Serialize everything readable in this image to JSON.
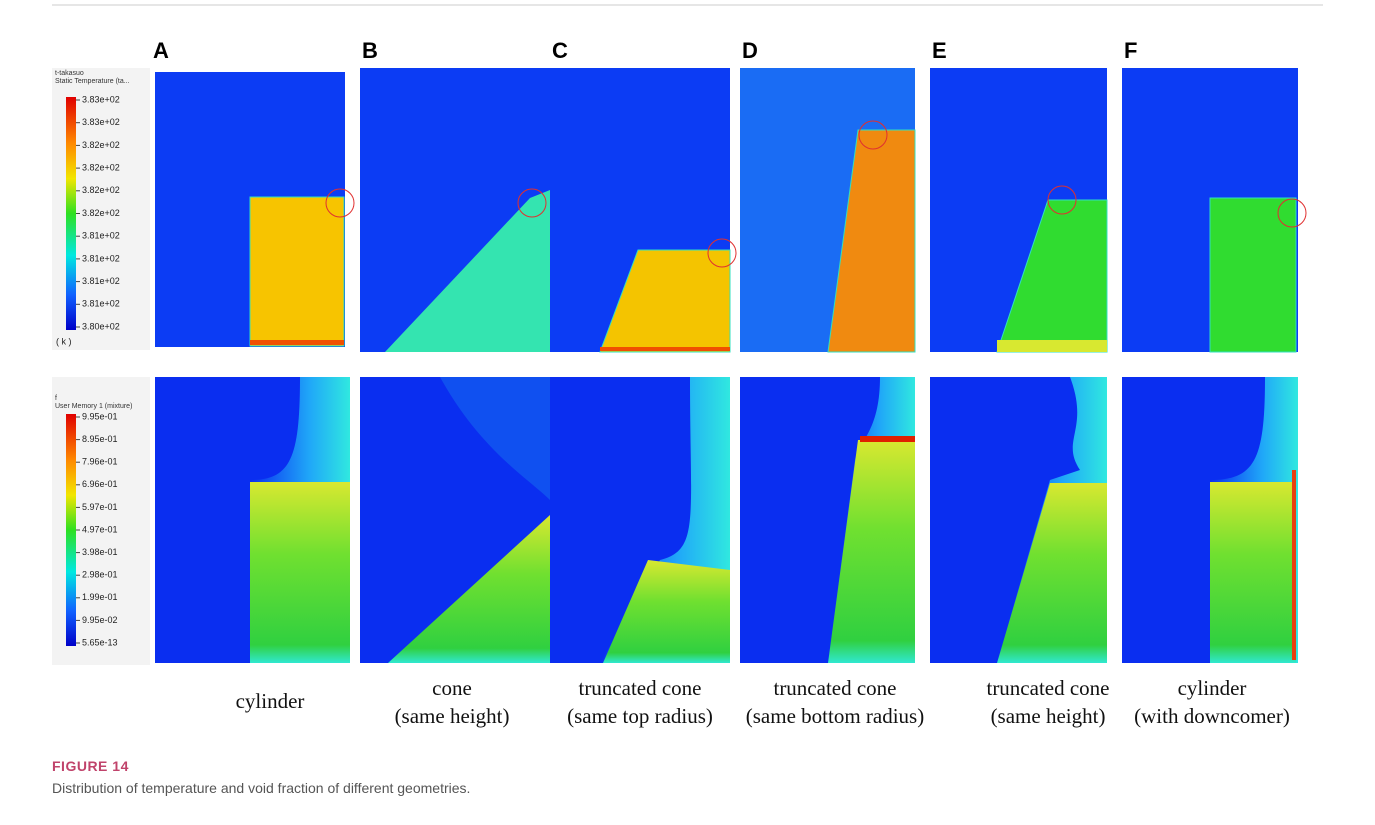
{
  "figure": {
    "label": "FIGURE 14",
    "caption": "Distribution of temperature and void fraction of different geometries."
  },
  "panels": [
    {
      "letter": "A",
      "caption": [
        "cylinder"
      ]
    },
    {
      "letter": "B",
      "caption": [
        "cone",
        "(same height)"
      ]
    },
    {
      "letter": "C",
      "caption": [
        "truncated cone",
        "(same top radius)"
      ]
    },
    {
      "letter": "D",
      "caption": [
        "truncated cone",
        "(same bottom radius)"
      ]
    },
    {
      "letter": "E",
      "caption": [
        "truncated cone",
        "(same height)"
      ]
    },
    {
      "letter": "F",
      "caption": [
        "cylinder",
        "(with downcomer)"
      ]
    }
  ],
  "colorbars": [
    {
      "header": [
        "t-takasuo",
        "Static Temperature (ta..."
      ],
      "ticks": [
        "3.83e+02",
        "3.83e+02",
        "3.82e+02",
        "3.82e+02",
        "3.82e+02",
        "3.82e+02",
        "3.81e+02",
        "3.81e+02",
        "3.81e+02",
        "3.81e+02",
        "3.80e+02"
      ],
      "unit": "( k )"
    },
    {
      "header": [
        "f",
        "User Memory 1 (mixture)"
      ],
      "ticks": [
        "9.95e-01",
        "8.95e-01",
        "7.96e-01",
        "6.96e-01",
        "5.97e-01",
        "4.97e-01",
        "3.98e-01",
        "2.98e-01",
        "1.99e-01",
        "9.95e-02",
        "5.65e-13"
      ]
    }
  ]
}
